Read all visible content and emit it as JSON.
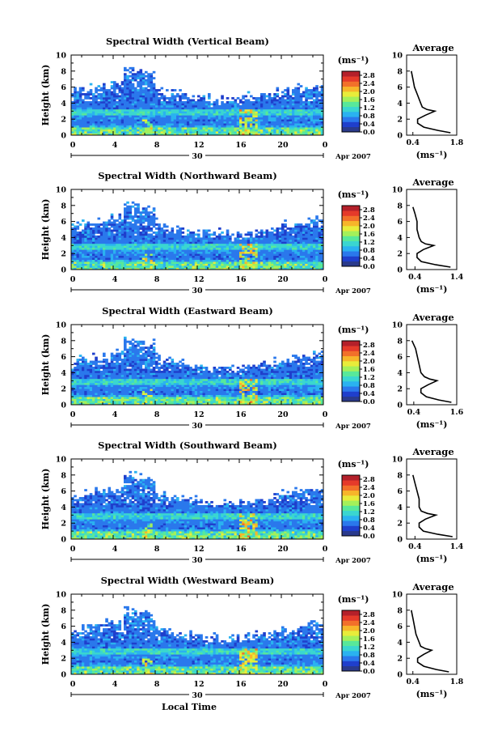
{
  "chart_data": [
    {
      "type": "heatmap",
      "title": "Spectral Width (Vertical Beam)",
      "ylabel": "Height (km)",
      "xticks": [
        "0",
        "4",
        "8",
        "12",
        "16",
        "20",
        "0"
      ],
      "yticks": [
        "0",
        "2",
        "4",
        "6",
        "8",
        "10"
      ],
      "xlim": [
        0,
        24
      ],
      "ylim": [
        0,
        10
      ],
      "day_label": "30",
      "date_label": "Apr 2007",
      "colorbar": {
        "unit": "(ms⁻¹)",
        "ticks": [
          "0.0",
          "0.4",
          "0.8",
          "1.2",
          "1.6",
          "2.0",
          "2.4",
          "2.8"
        ],
        "range": [
          0,
          3.0
        ]
      },
      "average": {
        "title": "Average",
        "xlabel": "(ms⁻¹)",
        "xticks": [
          "0.4",
          "1.8"
        ],
        "xlim": [
          0.2,
          1.8
        ],
        "yticks": [
          "0",
          "2",
          "4",
          "6",
          "8",
          "10"
        ],
        "height": [
          0.3,
          0.6,
          1.0,
          1.5,
          2.0,
          2.5,
          3.0,
          3.2,
          3.5,
          4.0,
          5.0,
          6.0,
          7.0,
          8.0
        ],
        "value": [
          1.6,
          1.2,
          0.75,
          0.55,
          0.55,
          0.8,
          1.1,
          0.85,
          0.7,
          0.65,
          0.55,
          0.45,
          0.4,
          0.35
        ]
      }
    },
    {
      "type": "heatmap",
      "title": "Spectral Width (Northward Beam)",
      "ylabel": "Height (km)",
      "xticks": [
        "0",
        "4",
        "8",
        "12",
        "16",
        "20",
        "0"
      ],
      "yticks": [
        "0",
        "2",
        "4",
        "6",
        "8",
        "10"
      ],
      "xlim": [
        0,
        24
      ],
      "ylim": [
        0,
        10
      ],
      "day_label": "30",
      "date_label": "Apr 2007",
      "colorbar": {
        "unit": "(ms⁻¹)",
        "ticks": [
          "0.0",
          "0.4",
          "0.8",
          "1.2",
          "1.6",
          "2.0",
          "2.4",
          "2.8"
        ],
        "range": [
          0,
          3.0
        ]
      },
      "average": {
        "title": "Average",
        "xlabel": "(ms⁻¹)",
        "xticks": [
          "0.4",
          "1.4"
        ],
        "xlim": [
          0.2,
          1.4
        ],
        "yticks": [
          "0",
          "2",
          "4",
          "6",
          "8",
          "10"
        ],
        "height": [
          0.3,
          0.6,
          1.0,
          1.5,
          2.0,
          2.5,
          3.0,
          3.2,
          3.5,
          4.0,
          5.0,
          6.0,
          7.0,
          7.8
        ],
        "value": [
          1.25,
          0.9,
          0.55,
          0.45,
          0.45,
          0.6,
          0.85,
          0.65,
          0.55,
          0.5,
          0.45,
          0.45,
          0.4,
          0.35
        ]
      }
    },
    {
      "type": "heatmap",
      "title": "Spectral Width (Eastward Beam)",
      "ylabel": "Height (km)",
      "xticks": [
        "0",
        "4",
        "8",
        "12",
        "16",
        "20",
        "0"
      ],
      "yticks": [
        "0",
        "2",
        "4",
        "6",
        "8",
        "10"
      ],
      "xlim": [
        0,
        24
      ],
      "ylim": [
        0,
        10
      ],
      "day_label": "30",
      "date_label": "Apr 2007",
      "colorbar": {
        "unit": "(ms⁻¹)",
        "ticks": [
          "0.0",
          "0.4",
          "0.8",
          "1.2",
          "1.6",
          "2.0",
          "2.4",
          "2.8"
        ],
        "range": [
          0,
          3.0
        ]
      },
      "average": {
        "title": "Average",
        "xlabel": "(ms⁻¹)",
        "xticks": [
          "0.4",
          "1.6"
        ],
        "xlim": [
          0.2,
          1.6
        ],
        "yticks": [
          "0",
          "2",
          "4",
          "6",
          "8",
          "10"
        ],
        "height": [
          0.3,
          0.6,
          1.0,
          1.5,
          2.0,
          2.5,
          3.0,
          3.2,
          3.5,
          4.0,
          5.0,
          6.0,
          7.0,
          8.0
        ],
        "value": [
          1.45,
          1.1,
          0.75,
          0.6,
          0.6,
          0.8,
          1.05,
          0.85,
          0.7,
          0.6,
          0.55,
          0.5,
          0.45,
          0.35
        ]
      }
    },
    {
      "type": "heatmap",
      "title": "Spectral Width (Southward Beam)",
      "ylabel": "Height (km)",
      "xticks": [
        "0",
        "4",
        "8",
        "12",
        "16",
        "20",
        "0"
      ],
      "yticks": [
        "0",
        "2",
        "4",
        "6",
        "8",
        "10"
      ],
      "xlim": [
        0,
        24
      ],
      "ylim": [
        0,
        10
      ],
      "day_label": "30",
      "date_label": "Apr 2007",
      "colorbar": {
        "unit": "(ms⁻¹)",
        "ticks": [
          "0.0",
          "0.4",
          "0.8",
          "1.2",
          "1.6",
          "2.0",
          "2.4",
          "2.8"
        ],
        "range": [
          0,
          3.0
        ]
      },
      "average": {
        "title": "Average",
        "xlabel": "(ms⁻¹)",
        "xticks": [
          "0.4",
          "1.4"
        ],
        "xlim": [
          0.2,
          1.4
        ],
        "yticks": [
          "0",
          "2",
          "4",
          "6",
          "8",
          "10"
        ],
        "height": [
          0.3,
          0.6,
          1.0,
          1.5,
          2.0,
          2.5,
          3.0,
          3.2,
          3.5,
          4.0,
          5.0,
          6.0,
          7.0,
          8.0
        ],
        "value": [
          1.3,
          0.95,
          0.6,
          0.5,
          0.5,
          0.65,
          0.9,
          0.7,
          0.55,
          0.5,
          0.5,
          0.45,
          0.4,
          0.35
        ]
      }
    },
    {
      "type": "heatmap",
      "title": "Spectral Width (Westward Beam)",
      "ylabel": "Height (km)",
      "xlabel": "Local Time",
      "xticks": [
        "0",
        "4",
        "8",
        "12",
        "16",
        "20",
        "0"
      ],
      "yticks": [
        "0",
        "2",
        "4",
        "6",
        "8",
        "10"
      ],
      "xlim": [
        0,
        24
      ],
      "ylim": [
        0,
        10
      ],
      "day_label": "30",
      "date_label": "Apr 2007",
      "colorbar": {
        "unit": "(ms⁻¹)",
        "ticks": [
          "0.0",
          "0.4",
          "0.8",
          "1.2",
          "1.6",
          "2.0",
          "2.4",
          "2.8"
        ],
        "range": [
          0,
          3.0
        ]
      },
      "average": {
        "title": "Average",
        "xlabel": "(ms⁻¹)",
        "xticks": [
          "0.4",
          "1.8"
        ],
        "xlim": [
          0.2,
          1.8
        ],
        "yticks": [
          "0",
          "2",
          "4",
          "6",
          "8",
          "10"
        ],
        "height": [
          0.3,
          0.6,
          1.0,
          1.5,
          2.0,
          2.5,
          3.0,
          3.2,
          3.5,
          4.0,
          5.0,
          6.0,
          7.0,
          8.0
        ],
        "value": [
          1.55,
          1.15,
          0.75,
          0.55,
          0.55,
          0.75,
          1.0,
          0.8,
          0.65,
          0.6,
          0.5,
          0.45,
          0.4,
          0.35
        ]
      }
    }
  ],
  "colors": {
    "scale": [
      "#2a3a8c",
      "#1f3fcc",
      "#2a78ec",
      "#2ab2f0",
      "#3ad6d0",
      "#58e89a",
      "#a4f05a",
      "#e8ec3a",
      "#f7b52a",
      "#f2702a",
      "#e53a2a",
      "#b4202a"
    ]
  }
}
